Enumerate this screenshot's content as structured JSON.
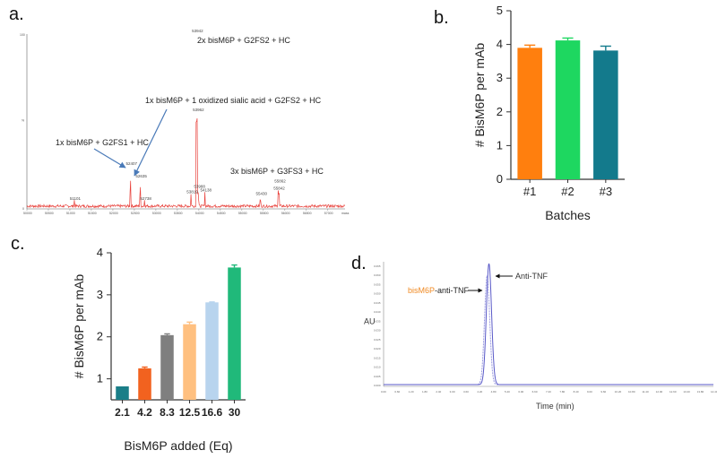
{
  "panels": {
    "a": "a.",
    "b": "b.",
    "c": "c.",
    "d": "d."
  },
  "chart_data": [
    {
      "id": "a",
      "type": "line",
      "x_unit_label": "mass",
      "xlim": [
        50000,
        57400
      ],
      "x_ticks": [
        "50000",
        "50500",
        "51000",
        "51500",
        "52000",
        "52500",
        "53000",
        "53500",
        "54000",
        "54500",
        "55000",
        "55500",
        "56000",
        "56500",
        "57000"
      ],
      "y_ticks": [
        "100",
        "%",
        "0"
      ],
      "peaks": [
        {
          "x": 51101,
          "y": 4,
          "label": "51101"
        },
        {
          "x": 52407,
          "y": 24,
          "label": "52407"
        },
        {
          "x": 52635,
          "y": 17,
          "label": "52635"
        },
        {
          "x": 52738,
          "y": 4,
          "label": "52738"
        },
        {
          "x": 53819,
          "y": 8,
          "label": "53819"
        },
        {
          "x": 53942,
          "y": 100,
          "label": "53942"
        },
        {
          "x": 53962,
          "y": 55,
          "label": "53962"
        },
        {
          "x": 53988,
          "y": 11,
          "label": "53988"
        },
        {
          "x": 54138,
          "y": 9,
          "label": "54138"
        },
        {
          "x": 55430,
          "y": 7,
          "label": "55430"
        },
        {
          "x": 55862,
          "y": 14,
          "label": "55862"
        },
        {
          "x": 55842,
          "y": 10,
          "label": "55842"
        }
      ],
      "annotations": [
        "2x bisM6P + G2FS2 + HC",
        "1x bisM6P + 1 oxidized sialic acid + G2FS2 + HC",
        "1x bisM6P + G2FS1 + HC",
        "3x bisM6P + G3FS3 + HC"
      ],
      "color": "#e8403a"
    },
    {
      "id": "b",
      "type": "bar",
      "categories": [
        "#1",
        "#2",
        "#3"
      ],
      "values": [
        3.9,
        4.12,
        3.82
      ],
      "errors": [
        0.08,
        0.07,
        0.13
      ],
      "colors": [
        "#ff7f0e",
        "#1ed760",
        "#137a8c"
      ],
      "ylim": [
        0,
        5
      ],
      "y_ticks": [
        "0",
        "1",
        "2",
        "3",
        "4",
        "5"
      ],
      "xlabel": "Batches",
      "ylabel": "# BisM6P per mAb"
    },
    {
      "id": "c",
      "type": "bar",
      "categories": [
        "2.1",
        "4.2",
        "8.3",
        "12.5",
        "16.6",
        "30"
      ],
      "values": [
        0.82,
        1.25,
        2.04,
        2.3,
        2.82,
        3.65
      ],
      "errors": [
        0.0,
        0.03,
        0.03,
        0.05,
        0.01,
        0.06
      ],
      "colors": [
        "#1a7e88",
        "#f2621f",
        "#7f7f7f",
        "#ffc080",
        "#b8d4ee",
        "#20b97a"
      ],
      "ylim": [
        0.5,
        4
      ],
      "y_ticks": [
        "1",
        "2",
        "3",
        "4"
      ],
      "xlabel": "BisM6P added (Eq)",
      "ylabel": "# BisM6P per mAb"
    },
    {
      "id": "d",
      "type": "line",
      "xlabel": "Time (min)",
      "ylabel": "AU",
      "series": [
        {
          "name": "bisM6P-anti-TNF",
          "peak_x": 4.52,
          "height": 0.9,
          "color": "#9a9ae0"
        },
        {
          "name": "Anti-TNF",
          "peak_x": 4.6,
          "height": 1.0,
          "color": "#5a5ac8"
        }
      ],
      "legend_labels": {
        "conjugate_prefix": "bisM6P",
        "conjugate_suffix": "-anti-TNF",
        "native": "Anti-TNF"
      },
      "label_colors": {
        "conjugate_prefix": "#f08a24",
        "default": "#222222"
      },
      "xlim": [
        0,
        14.4
      ],
      "x_ticks": [
        "0.00",
        "0.60",
        "1.20",
        "1.80",
        "2.40",
        "3.00",
        "3.60",
        "4.20",
        "4.80",
        "5.40",
        "6.00",
        "6.60",
        "7.20",
        "7.80",
        "8.40",
        "9.00",
        "9.60",
        "10.20",
        "10.80",
        "11.40",
        "12.00",
        "12.60",
        "13.20",
        "13.80",
        "14.40"
      ],
      "y_ticks": [
        "0.000",
        "0.005",
        "0.010",
        "0.015",
        "0.020",
        "0.025",
        "0.030",
        "0.035",
        "0.040",
        "0.045",
        "0.050",
        "0.055",
        "0.060",
        "0.065"
      ]
    }
  ]
}
